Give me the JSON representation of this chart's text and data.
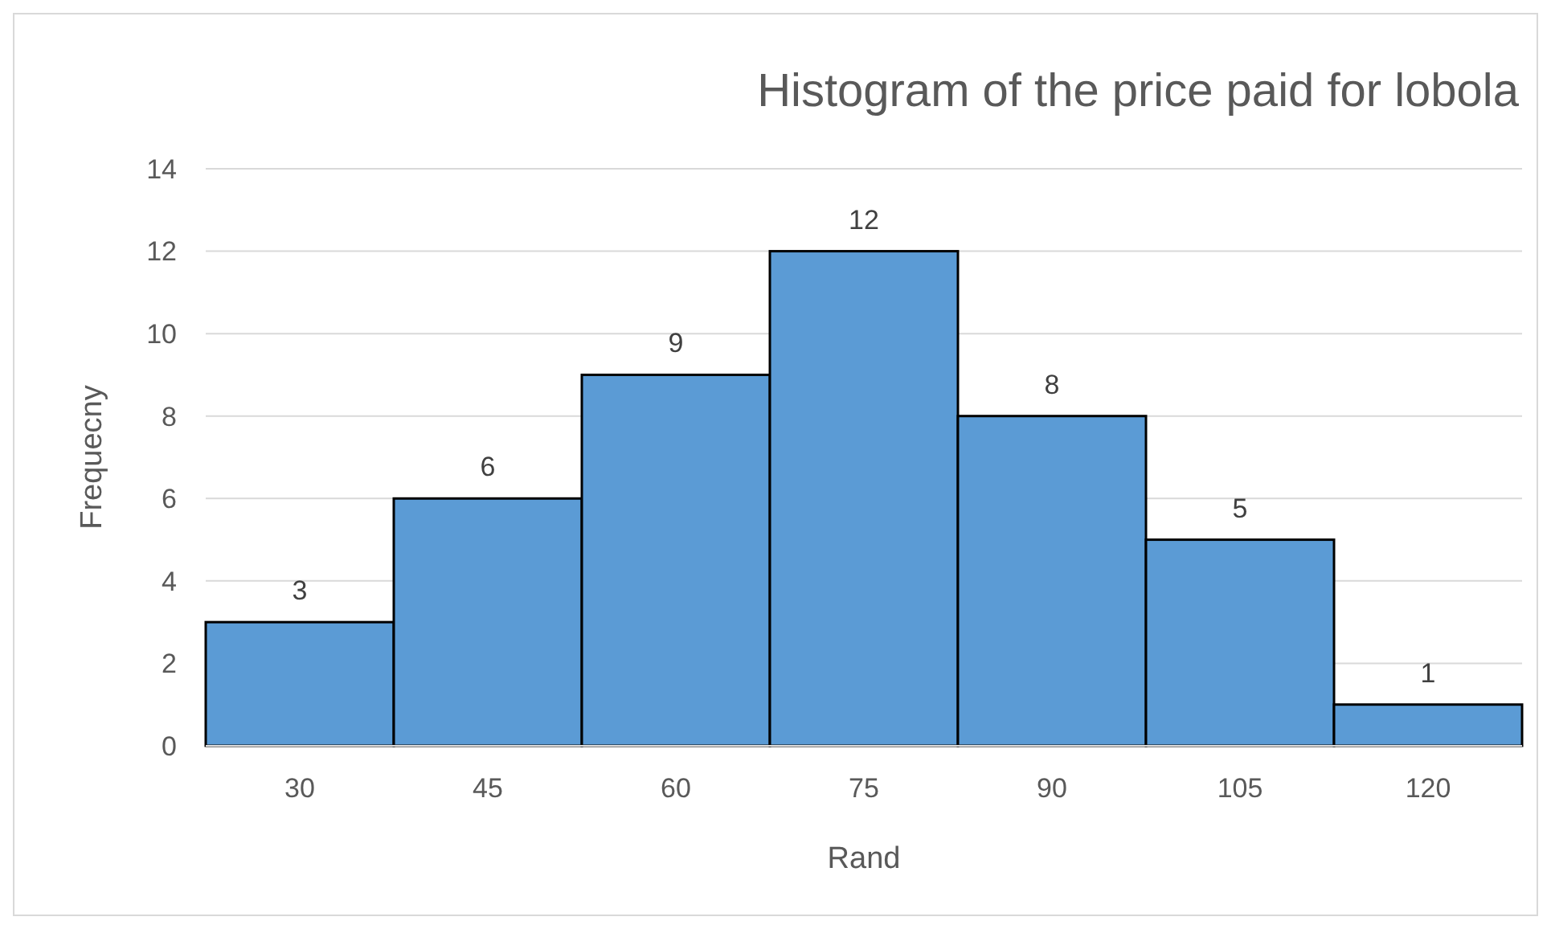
{
  "chart_data": {
    "type": "bar",
    "title": "Histogram of the price paid for lobola",
    "xlabel": "Rand",
    "ylabel": "Frequecny",
    "categories": [
      "30",
      "45",
      "60",
      "75",
      "90",
      "105",
      "120"
    ],
    "values": [
      3,
      6,
      9,
      12,
      8,
      5,
      1
    ],
    "color": "#5b9bd5",
    "ylim": [
      0,
      14
    ],
    "yticks": [
      0,
      2,
      4,
      6,
      8,
      10,
      12,
      14
    ],
    "grid": "y",
    "data_labels": true
  }
}
